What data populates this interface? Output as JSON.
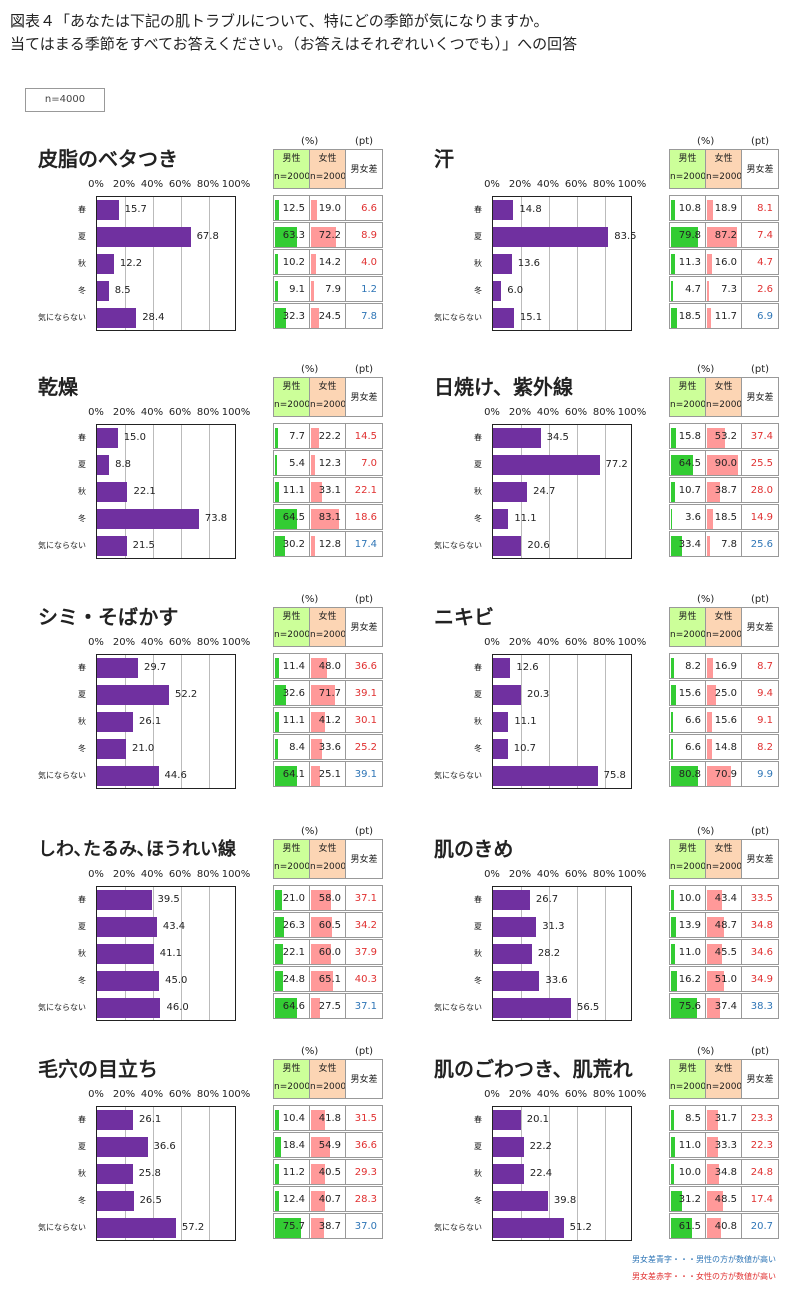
{
  "title_line1": "図表４「あなたは下記の肌トラブルについて、特にどの季節が気になりますか。",
  "title_line2": "当てはまる季節をすべてお答えください。（お答えはそれぞれいくつでも）」への回答",
  "n_label": "n=4000",
  "axis_ticks": [
    "0%",
    "20%",
    "40%",
    "60%",
    "80%",
    "100%"
  ],
  "table_units": {
    "pct": "(%)",
    "pt": "(pt)"
  },
  "table_headers": {
    "male": "男性",
    "female": "女性",
    "n_male": "n=2000",
    "n_female": "n=2000",
    "diff": "男女差"
  },
  "colors": {
    "bar": "#7030a0",
    "male_bar": "#33cc33",
    "female_bar": "#ff9999",
    "male_hdr": "#ccff99",
    "female_hdr": "#fcd5b4",
    "blue": "#2e75b6",
    "red": "#e03030"
  },
  "legend": {
    "blue": "男女差青字・・・男性の方が数値が高い",
    "red": "男女差赤字・・・女性の方が数値が高い"
  },
  "chart_data": [
    {
      "type": "bar",
      "title": "皮脂のベタつき",
      "categories": [
        "春",
        "夏",
        "秋",
        "冬",
        "気にならない"
      ],
      "values": [
        15.7,
        67.8,
        12.2,
        8.5,
        28.4
      ],
      "male": [
        12.5,
        63.3,
        10.2,
        9.1,
        32.3
      ],
      "female": [
        19.0,
        72.2,
        14.2,
        7.9,
        24.5
      ],
      "diff": [
        "6.6",
        "8.9",
        "4.0",
        "1.2",
        "7.8"
      ],
      "diff_color": [
        "red",
        "red",
        "red",
        "blue",
        "blue"
      ],
      "xlim": [
        0,
        100
      ]
    },
    {
      "type": "bar",
      "title": "汗",
      "categories": [
        "春",
        "夏",
        "秋",
        "冬",
        "気にならない"
      ],
      "values": [
        14.8,
        83.5,
        13.6,
        6.0,
        15.1
      ],
      "male": [
        10.8,
        79.8,
        11.3,
        4.7,
        18.5
      ],
      "female": [
        18.9,
        87.2,
        16.0,
        7.3,
        11.7
      ],
      "diff": [
        "8.1",
        "7.4",
        "4.7",
        "2.6",
        "6.9"
      ],
      "diff_color": [
        "red",
        "red",
        "red",
        "red",
        "blue"
      ],
      "xlim": [
        0,
        100
      ]
    },
    {
      "type": "bar",
      "title": "乾燥",
      "categories": [
        "春",
        "夏",
        "秋",
        "冬",
        "気にならない"
      ],
      "values": [
        15.0,
        8.8,
        22.1,
        73.8,
        21.5
      ],
      "male": [
        7.7,
        5.4,
        11.1,
        64.5,
        30.2
      ],
      "female": [
        22.2,
        12.3,
        33.1,
        83.1,
        12.8
      ],
      "diff": [
        "14.5",
        "7.0",
        "22.1",
        "18.6",
        "17.4"
      ],
      "diff_color": [
        "red",
        "red",
        "red",
        "red",
        "blue"
      ],
      "xlim": [
        0,
        100
      ]
    },
    {
      "type": "bar",
      "title": "日焼け、紫外線",
      "categories": [
        "春",
        "夏",
        "秋",
        "冬",
        "気にならない"
      ],
      "values": [
        34.5,
        77.2,
        24.7,
        11.1,
        20.6
      ],
      "male": [
        15.8,
        64.5,
        10.7,
        3.6,
        33.4
      ],
      "female": [
        53.2,
        90.0,
        38.7,
        18.5,
        7.8
      ],
      "diff": [
        "37.4",
        "25.5",
        "28.0",
        "14.9",
        "25.6"
      ],
      "diff_color": [
        "red",
        "red",
        "red",
        "red",
        "blue"
      ],
      "xlim": [
        0,
        100
      ]
    },
    {
      "type": "bar",
      "title": "シミ・そばかす",
      "categories": [
        "春",
        "夏",
        "秋",
        "冬",
        "気にならない"
      ],
      "values": [
        29.7,
        52.2,
        26.1,
        21.0,
        44.6
      ],
      "male": [
        11.4,
        32.6,
        11.1,
        8.4,
        64.1
      ],
      "female": [
        48.0,
        71.7,
        41.2,
        33.6,
        25.1
      ],
      "diff": [
        "36.6",
        "39.1",
        "30.1",
        "25.2",
        "39.1"
      ],
      "diff_color": [
        "red",
        "red",
        "red",
        "red",
        "blue"
      ],
      "xlim": [
        0,
        100
      ]
    },
    {
      "type": "bar",
      "title": "ニキビ",
      "categories": [
        "春",
        "夏",
        "秋",
        "冬",
        "気にならない"
      ],
      "values": [
        12.6,
        20.3,
        11.1,
        10.7,
        75.8
      ],
      "male": [
        8.2,
        15.6,
        6.6,
        6.6,
        80.8
      ],
      "female": [
        16.9,
        25.0,
        15.6,
        14.8,
        70.9
      ],
      "diff": [
        "8.7",
        "9.4",
        "9.1",
        "8.2",
        "9.9"
      ],
      "diff_color": [
        "red",
        "red",
        "red",
        "red",
        "blue"
      ],
      "xlim": [
        0,
        100
      ]
    },
    {
      "type": "bar",
      "title": "しわ､たるみ､ほうれい線",
      "categories": [
        "春",
        "夏",
        "秋",
        "冬",
        "気にならない"
      ],
      "values": [
        39.5,
        43.4,
        41.1,
        45.0,
        46.0
      ],
      "male": [
        21.0,
        26.3,
        22.1,
        24.8,
        64.6
      ],
      "female": [
        58.0,
        60.5,
        60.0,
        65.1,
        27.5
      ],
      "diff": [
        "37.1",
        "34.2",
        "37.9",
        "40.3",
        "37.1"
      ],
      "diff_color": [
        "red",
        "red",
        "red",
        "red",
        "blue"
      ],
      "xlim": [
        0,
        100
      ]
    },
    {
      "type": "bar",
      "title": "肌のきめ",
      "categories": [
        "春",
        "夏",
        "秋",
        "冬",
        "気にならない"
      ],
      "values": [
        26.7,
        31.3,
        28.2,
        33.6,
        56.5
      ],
      "male": [
        10.0,
        13.9,
        11.0,
        16.2,
        75.6
      ],
      "female": [
        43.4,
        48.7,
        45.5,
        51.0,
        37.4
      ],
      "diff": [
        "33.5",
        "34.8",
        "34.6",
        "34.9",
        "38.3"
      ],
      "diff_color": [
        "red",
        "red",
        "red",
        "red",
        "blue"
      ],
      "xlim": [
        0,
        100
      ]
    },
    {
      "type": "bar",
      "title": "毛穴の目立ち",
      "categories": [
        "春",
        "夏",
        "秋",
        "冬",
        "気にならない"
      ],
      "values": [
        26.1,
        36.6,
        25.8,
        26.5,
        57.2
      ],
      "male": [
        10.4,
        18.4,
        11.2,
        12.4,
        75.7
      ],
      "female": [
        41.8,
        54.9,
        40.5,
        40.7,
        38.7
      ],
      "diff": [
        "31.5",
        "36.6",
        "29.3",
        "28.3",
        "37.0"
      ],
      "diff_color": [
        "red",
        "red",
        "red",
        "red",
        "blue"
      ],
      "xlim": [
        0,
        100
      ]
    },
    {
      "type": "bar",
      "title": "肌のごわつき、肌荒れ",
      "categories": [
        "春",
        "夏",
        "秋",
        "冬",
        "気にならない"
      ],
      "values": [
        20.1,
        22.2,
        22.4,
        39.8,
        51.2
      ],
      "male": [
        8.5,
        11.0,
        10.0,
        31.2,
        61.5
      ],
      "female": [
        31.7,
        33.3,
        34.8,
        48.5,
        40.8
      ],
      "diff": [
        "23.3",
        "22.3",
        "24.8",
        "17.4",
        "20.7"
      ],
      "diff_color": [
        "red",
        "red",
        "red",
        "red",
        "blue"
      ],
      "xlim": [
        0,
        100
      ]
    }
  ]
}
